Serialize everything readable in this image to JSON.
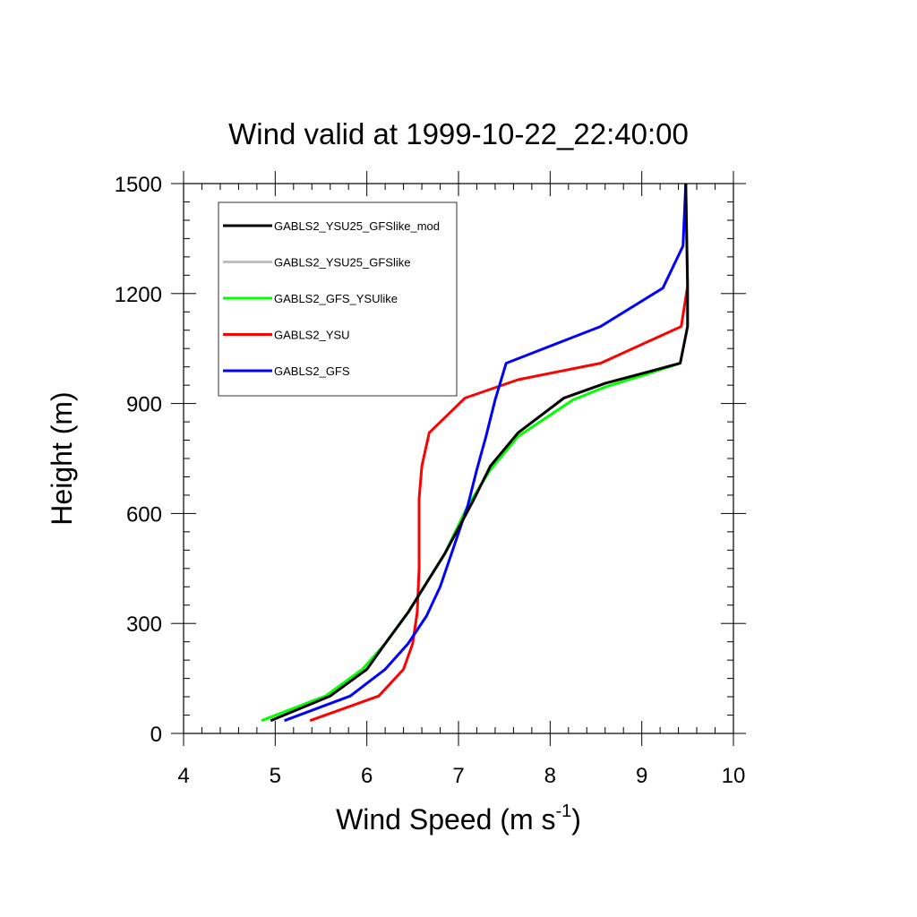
{
  "chart_data": {
    "type": "line",
    "title": "Wind valid at 1999-10-22_22:40:00",
    "xlabel": "Wind Speed (m s",
    "xlabel_superscript": "-1",
    "xlabel_close": ")",
    "ylabel": "Height (m)",
    "xlim": [
      4,
      10
    ],
    "ylim": [
      0,
      1500
    ],
    "xticks": [
      4,
      5,
      6,
      7,
      8,
      9,
      10
    ],
    "yticks": [
      0,
      300,
      600,
      900,
      1200,
      1500
    ],
    "xtick_labels": [
      "4",
      "5",
      "6",
      "7",
      "8",
      "9",
      "10"
    ],
    "ytick_labels": [
      "0",
      "300",
      "600",
      "900",
      "1200",
      "1500"
    ],
    "legend_position": "top-left",
    "series": [
      {
        "name": "GABLS2_YSU25_GFSlike_mod",
        "color": "#000000",
        "points": [
          [
            4.95,
            35
          ],
          [
            5.6,
            102
          ],
          [
            6.0,
            175
          ],
          [
            6.2,
            245
          ],
          [
            6.45,
            330
          ],
          [
            6.85,
            490
          ],
          [
            7.15,
            630
          ],
          [
            7.35,
            730
          ],
          [
            7.65,
            820
          ],
          [
            8.15,
            915
          ],
          [
            8.6,
            955
          ],
          [
            9.05,
            985
          ],
          [
            9.42,
            1010
          ],
          [
            9.5,
            1110
          ],
          [
            9.5,
            1220
          ],
          [
            9.48,
            1500
          ]
        ]
      },
      {
        "name": "GABLS2_YSU25_GFSlike",
        "color": "#bfbfbf",
        "points": [
          [
            4.95,
            35
          ],
          [
            5.6,
            102
          ],
          [
            6.0,
            175
          ],
          [
            6.2,
            245
          ],
          [
            6.45,
            330
          ],
          [
            6.85,
            490
          ],
          [
            7.15,
            630
          ],
          [
            7.35,
            730
          ],
          [
            7.65,
            820
          ],
          [
            8.15,
            915
          ],
          [
            8.6,
            955
          ],
          [
            9.05,
            985
          ],
          [
            9.42,
            1010
          ],
          [
            9.5,
            1110
          ],
          [
            9.5,
            1220
          ],
          [
            9.48,
            1500
          ]
        ]
      },
      {
        "name": "GABLS2_GFS_YSUlike",
        "color": "#00ff00",
        "points": [
          [
            4.85,
            35
          ],
          [
            5.55,
            102
          ],
          [
            5.95,
            175
          ],
          [
            6.2,
            245
          ],
          [
            6.45,
            330
          ],
          [
            6.85,
            490
          ],
          [
            7.1,
            620
          ],
          [
            7.35,
            720
          ],
          [
            7.65,
            810
          ],
          [
            8.25,
            910
          ],
          [
            8.6,
            945
          ],
          [
            9.05,
            980
          ],
          [
            9.42,
            1010
          ]
        ]
      },
      {
        "name": "GABLS2_YSU",
        "color": "#ff0000",
        "points": [
          [
            5.38,
            35
          ],
          [
            6.13,
            102
          ],
          [
            6.4,
            175
          ],
          [
            6.5,
            245
          ],
          [
            6.55,
            330
          ],
          [
            6.57,
            450
          ],
          [
            6.57,
            640
          ],
          [
            6.6,
            730
          ],
          [
            6.68,
            820
          ],
          [
            7.07,
            915
          ],
          [
            7.65,
            965
          ],
          [
            8.55,
            1010
          ],
          [
            9.43,
            1110
          ],
          [
            9.5,
            1220
          ]
        ]
      },
      {
        "name": "GABLS2_GFS",
        "color": "#0000ff",
        "points": [
          [
            5.1,
            35
          ],
          [
            5.82,
            102
          ],
          [
            6.2,
            175
          ],
          [
            6.45,
            245
          ],
          [
            6.65,
            320
          ],
          [
            6.8,
            400
          ],
          [
            6.95,
            510
          ],
          [
            7.1,
            620
          ],
          [
            7.2,
            720
          ],
          [
            7.3,
            810
          ],
          [
            7.4,
            910
          ],
          [
            7.52,
            1010
          ],
          [
            8.55,
            1110
          ],
          [
            9.23,
            1215
          ],
          [
            9.45,
            1330
          ],
          [
            9.48,
            1500
          ]
        ]
      }
    ]
  }
}
